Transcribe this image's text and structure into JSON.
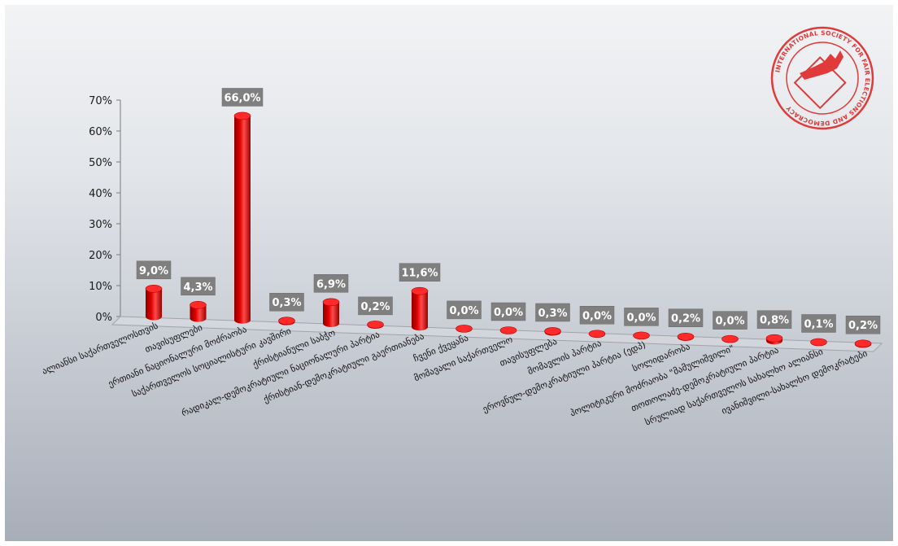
{
  "chart_data": {
    "type": "bar",
    "style": "3d-cylinder",
    "bar_color": "#e00000",
    "label_box_color": "#7f7f7f",
    "grid": false,
    "ylim": [
      0,
      70
    ],
    "yticks": [
      "0%",
      "10%",
      "20%",
      "30%",
      "40%",
      "50%",
      "60%",
      "70%"
    ],
    "categories": [
      "ალიანსი საქართველოსთვის",
      "თავისუფლები",
      "ერთიანი ნაციონალური მოძრაობა",
      "საქართველოს სოციალისტური კავშირი",
      "ქრისტიანული საბჭო",
      "რადიკალ-დემოკრატიული ნაციონალური პარტია",
      "ქრისტიან-დემოკრატიული გაერთიანება",
      "ჩვენი ქვეყანა",
      "მომავალი საქართველო",
      "თავისუფლება",
      "მომავლის პარტია",
      "ეროვნულ-დემოკრატიული პარტია (ედპ)",
      "სოლიდარობა",
      "პოლიტიკური მოძრაობა \"მამულიშვილი\"",
      "თოთოლაძე-დემოკრატიული პარტია",
      "სრულიად საქართველოს სახალხო ალიანსი",
      "ივანიშვილი-სახალხო დემოკრატები"
    ],
    "values": [
      9.0,
      4.3,
      66.0,
      0.3,
      6.9,
      0.2,
      11.6,
      0.0,
      0.0,
      0.3,
      0.0,
      0.0,
      0.2,
      0.0,
      0.8,
      0.1,
      0.2
    ],
    "data_labels": [
      "9,0%",
      "4,3%",
      "66,0%",
      "0,3%",
      "6,9%",
      "0,2%",
      "11,6%",
      "0,0%",
      "0,0%",
      "0,3%",
      "0,0%",
      "0,0%",
      "0,2%",
      "0,0%",
      "0,8%",
      "0,1%",
      "0,2%"
    ]
  },
  "logo": {
    "text": "INTERNATIONAL SOCIETY FOR FAIR ELECTIONS AND DEMOCRACY",
    "color": "#e03a3a"
  }
}
